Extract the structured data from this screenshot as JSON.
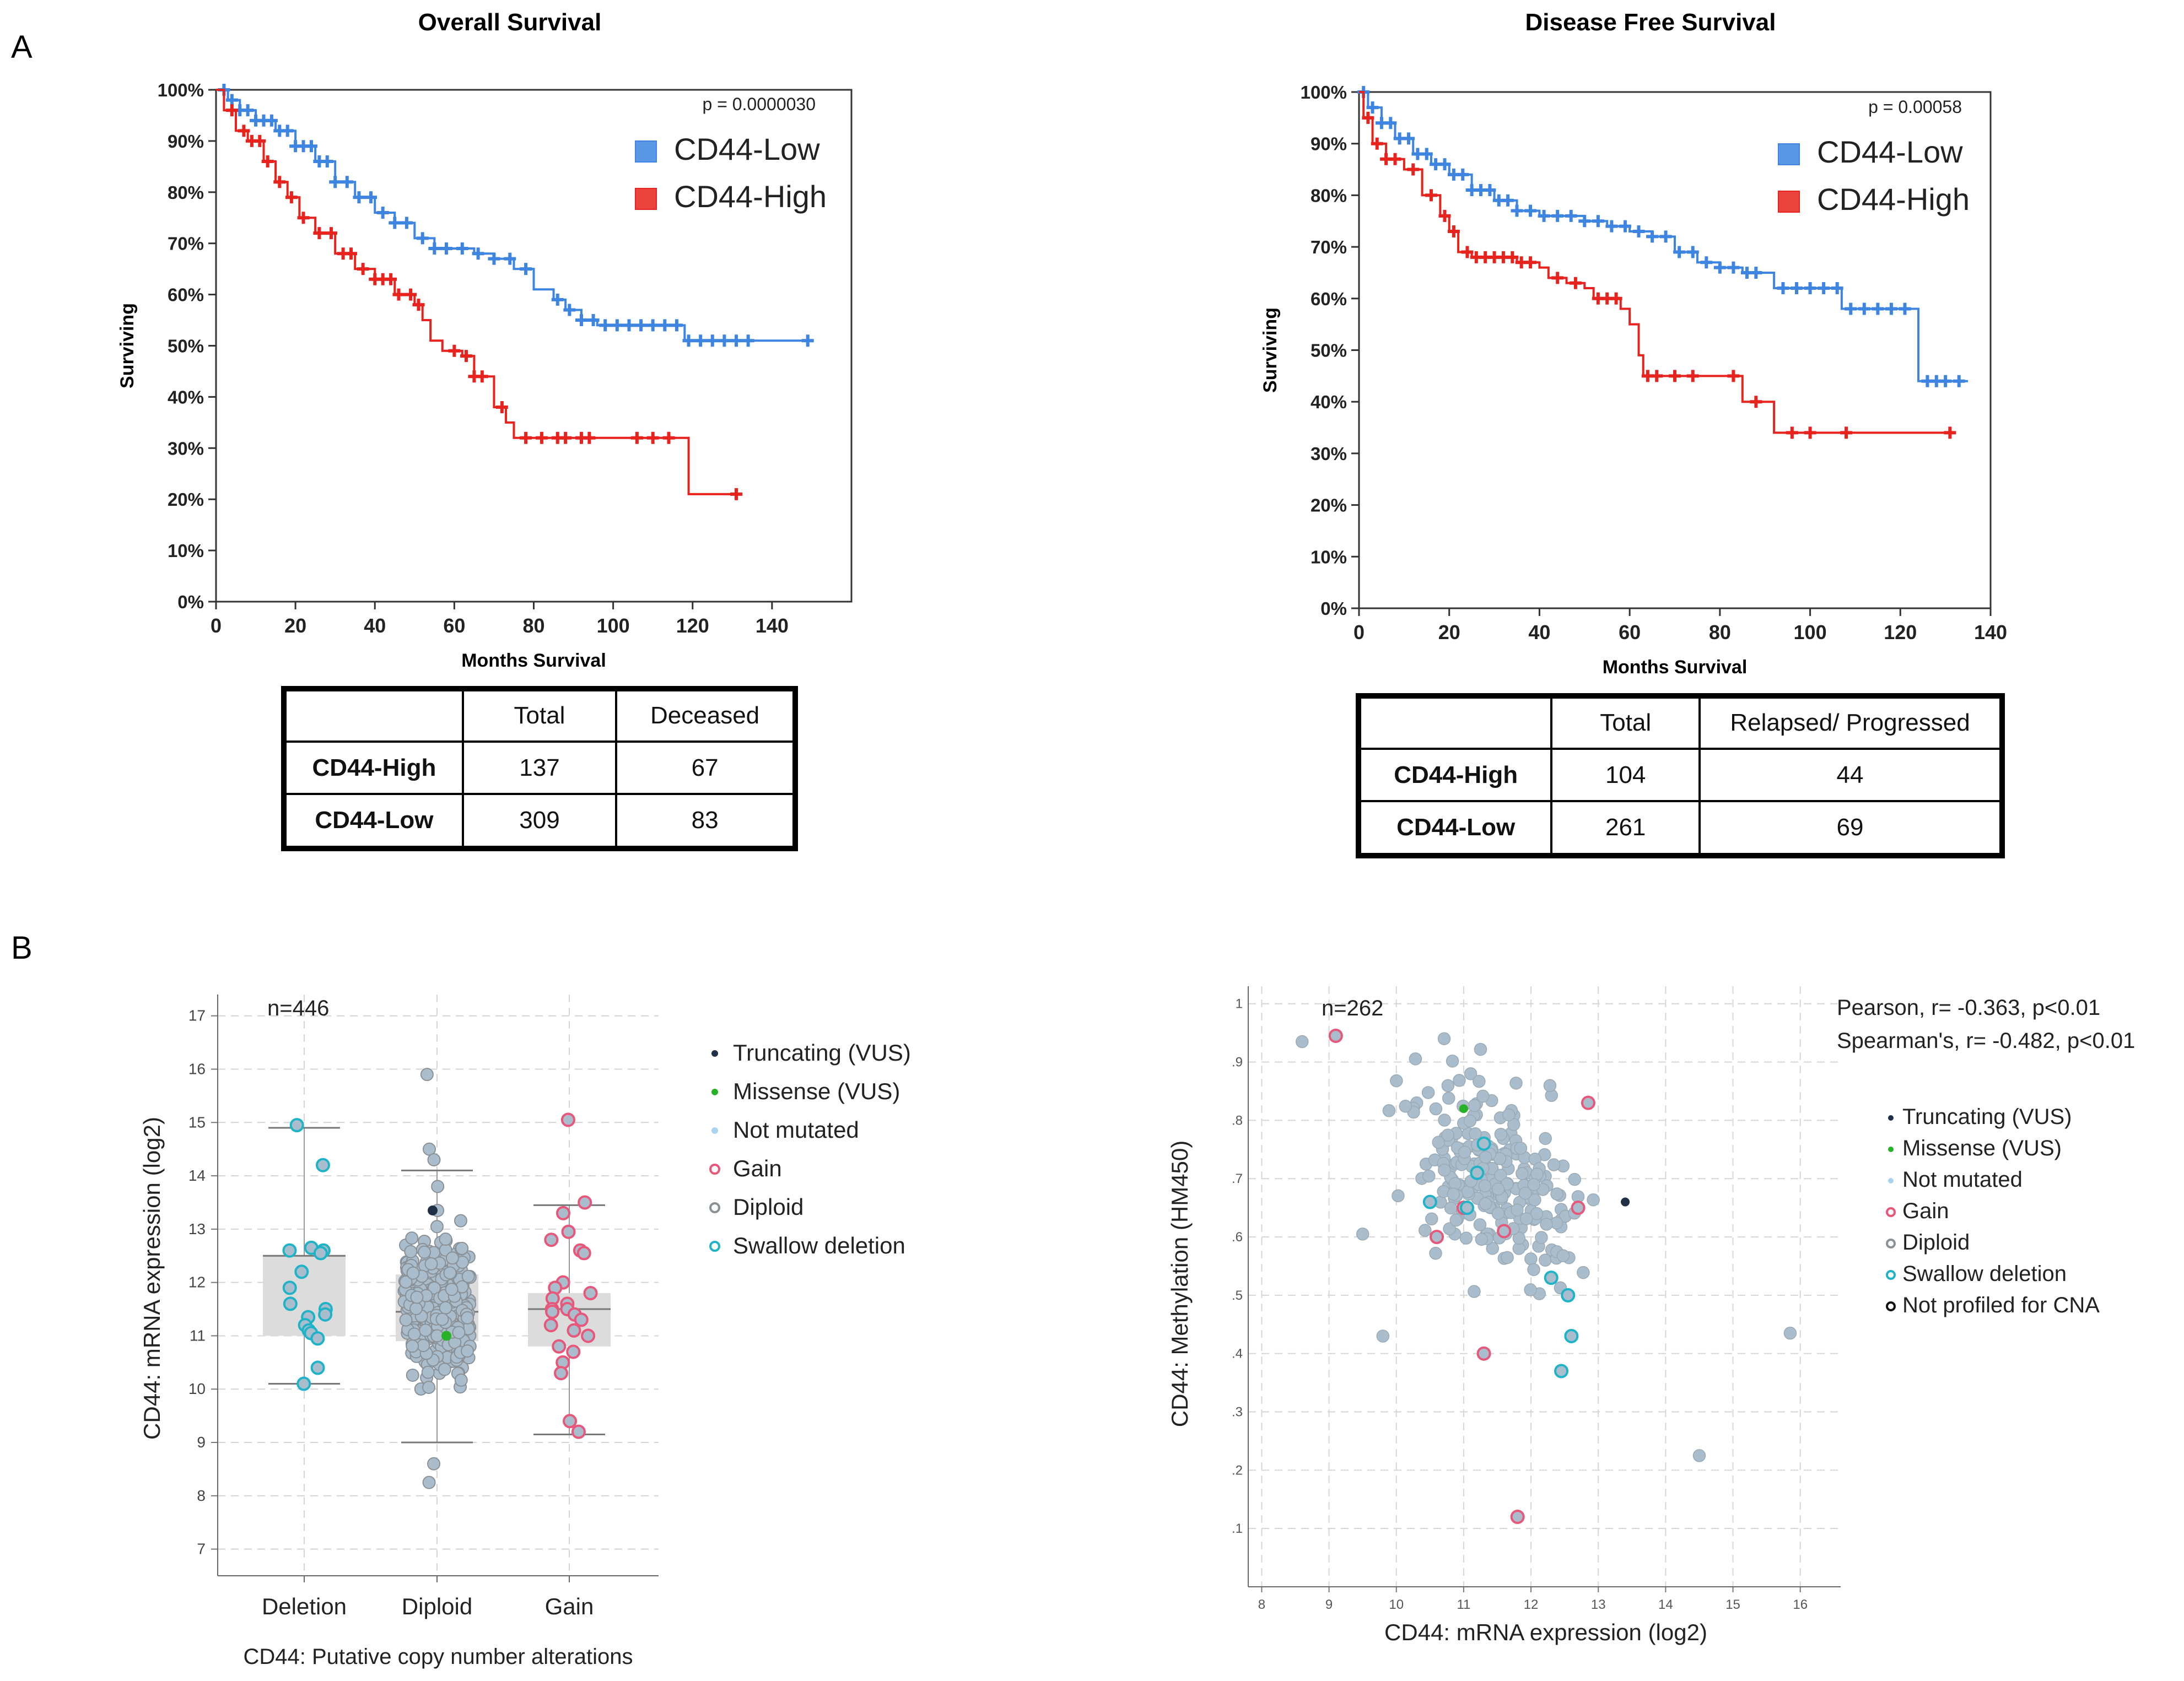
{
  "panels": {
    "a": "A",
    "b": "B"
  },
  "chart_data": [
    {
      "id": "os",
      "type": "line",
      "subtype": "kaplan-meier",
      "title": "Overall Survival",
      "xlabel": "Months Survival",
      "ylabel": "Surviving",
      "xlim": [
        0,
        160
      ],
      "ylim": [
        0,
        100
      ],
      "xticks": [
        0,
        20,
        40,
        60,
        80,
        100,
        120,
        140
      ],
      "yticks": [
        0,
        10,
        20,
        30,
        40,
        50,
        60,
        70,
        80,
        90,
        100
      ],
      "yticklabels": [
        "0%",
        "10%",
        "20%",
        "30%",
        "40%",
        "50%",
        "60%",
        "70%",
        "80%",
        "90%",
        "100%"
      ],
      "pvalue": "p = 0.0000030",
      "legend": [
        "CD44-Low",
        "CD44-High"
      ],
      "series": [
        {
          "name": "CD44-Low",
          "color": "#3d85e0",
          "points": [
            [
              0,
              100
            ],
            [
              3,
              98
            ],
            [
              6,
              96
            ],
            [
              10,
              94
            ],
            [
              15,
              92
            ],
            [
              20,
              89
            ],
            [
              25,
              86
            ],
            [
              30,
              82
            ],
            [
              35,
              79
            ],
            [
              40,
              76
            ],
            [
              45,
              74
            ],
            [
              50,
              71
            ],
            [
              55,
              69
            ],
            [
              60,
              69
            ],
            [
              65,
              68
            ],
            [
              70,
              67
            ],
            [
              75,
              65
            ],
            [
              80,
              61
            ],
            [
              85,
              59
            ],
            [
              88,
              57
            ],
            [
              92,
              55
            ],
            [
              96,
              54
            ],
            [
              105,
              54
            ],
            [
              117,
              54
            ],
            [
              118,
              51
            ],
            [
              150,
              51
            ]
          ],
          "censored": [
            2,
            4,
            6,
            8,
            10,
            12,
            14,
            16,
            18,
            20,
            22,
            24,
            26,
            28,
            30,
            33,
            36,
            39,
            42,
            45,
            48,
            52,
            55,
            58,
            62,
            66,
            70,
            74,
            78,
            86,
            89,
            92,
            95,
            98,
            101,
            104,
            107,
            110,
            113,
            116,
            119,
            122,
            125,
            128,
            131,
            134,
            149
          ]
        },
        {
          "name": "CD44-High",
          "color": "#e8221c",
          "points": [
            [
              0,
              100
            ],
            [
              2,
              96
            ],
            [
              5,
              92
            ],
            [
              8,
              90
            ],
            [
              12,
              86
            ],
            [
              15,
              82
            ],
            [
              18,
              79
            ],
            [
              21,
              75
            ],
            [
              25,
              72
            ],
            [
              30,
              68
            ],
            [
              35,
              65
            ],
            [
              40,
              63
            ],
            [
              45,
              60
            ],
            [
              50,
              58
            ],
            [
              52,
              55
            ],
            [
              54,
              51
            ],
            [
              57,
              49
            ],
            [
              62,
              48
            ],
            [
              65,
              44
            ],
            [
              70,
              38
            ],
            [
              73,
              35
            ],
            [
              75,
              32
            ],
            [
              80,
              32
            ],
            [
              118,
              32
            ],
            [
              119,
              21
            ],
            [
              131,
              21
            ]
          ],
          "censored": [
            4,
            7,
            9,
            11,
            13,
            16,
            19,
            22,
            26,
            29,
            32,
            34,
            37,
            40,
            42,
            44,
            46,
            49,
            51,
            60,
            63,
            65,
            67,
            72,
            78,
            82,
            86,
            88,
            92,
            94,
            106,
            110,
            114,
            131
          ]
        }
      ],
      "table": {
        "headers": [
          "",
          "Total",
          "Deceased"
        ],
        "rows": [
          {
            "label": "CD44-High",
            "total": "137",
            "event": "67"
          },
          {
            "label": "CD44-Low",
            "total": "309",
            "event": "83"
          }
        ]
      }
    },
    {
      "id": "dfs",
      "type": "line",
      "subtype": "kaplan-meier",
      "title": "Disease Free Survival",
      "xlabel": "Months Survival",
      "ylabel": "Surviving",
      "xlim": [
        0,
        140
      ],
      "ylim": [
        0,
        100
      ],
      "xticks": [
        0,
        20,
        40,
        60,
        80,
        100,
        120,
        140
      ],
      "yticks": [
        0,
        10,
        20,
        30,
        40,
        50,
        60,
        70,
        80,
        90,
        100
      ],
      "yticklabels": [
        "0%",
        "10%",
        "20%",
        "30%",
        "40%",
        "50%",
        "60%",
        "70%",
        "80%",
        "90%",
        "100%"
      ],
      "pvalue": "p = 0.00058",
      "legend": [
        "CD44-Low",
        "CD44-High"
      ],
      "series": [
        {
          "name": "CD44-Low",
          "color": "#3d85e0",
          "points": [
            [
              0,
              100
            ],
            [
              2,
              97
            ],
            [
              5,
              94
            ],
            [
              8,
              91
            ],
            [
              12,
              88
            ],
            [
              16,
              86
            ],
            [
              20,
              84
            ],
            [
              25,
              81
            ],
            [
              30,
              79
            ],
            [
              35,
              77
            ],
            [
              40,
              76
            ],
            [
              45,
              76
            ],
            [
              50,
              75
            ],
            [
              55,
              74
            ],
            [
              60,
              73
            ],
            [
              65,
              72
            ],
            [
              70,
              69
            ],
            [
              75,
              67
            ],
            [
              80,
              66
            ],
            [
              85,
              65
            ],
            [
              90,
              65
            ],
            [
              92,
              62
            ],
            [
              100,
              62
            ],
            [
              106,
              62
            ],
            [
              107,
              58
            ],
            [
              123,
              58
            ],
            [
              124,
              44
            ],
            [
              135,
              44
            ]
          ],
          "censored": [
            1,
            3,
            5,
            7,
            9,
            11,
            13,
            15,
            17,
            19,
            21,
            23,
            25,
            27,
            29,
            31,
            33,
            35,
            38,
            41,
            44,
            47,
            50,
            53,
            56,
            59,
            62,
            65,
            68,
            71,
            74,
            77,
            80,
            83,
            86,
            88,
            94,
            97,
            100,
            103,
            106,
            109,
            112,
            115,
            118,
            121,
            126,
            128,
            130,
            133
          ]
        },
        {
          "name": "CD44-High",
          "color": "#e8221c",
          "points": [
            [
              0,
              100
            ],
            [
              1,
              95
            ],
            [
              3,
              90
            ],
            [
              6,
              87
            ],
            [
              10,
              85
            ],
            [
              14,
              80
            ],
            [
              18,
              76
            ],
            [
              20,
              73
            ],
            [
              22,
              69
            ],
            [
              25,
              68
            ],
            [
              35,
              67
            ],
            [
              40,
              66
            ],
            [
              42,
              64
            ],
            [
              46,
              63
            ],
            [
              50,
              62
            ],
            [
              52,
              60
            ],
            [
              58,
              58
            ],
            [
              60,
              55
            ],
            [
              62,
              49
            ],
            [
              63,
              45
            ],
            [
              75,
              45
            ],
            [
              84,
              45
            ],
            [
              85,
              40
            ],
            [
              91,
              40
            ],
            [
              92,
              34
            ],
            [
              131,
              34
            ]
          ],
          "censored": [
            2,
            4,
            6,
            8,
            12,
            16,
            19,
            21,
            24,
            26,
            28,
            30,
            32,
            34,
            36,
            38,
            44,
            48,
            53,
            55,
            57,
            64,
            66,
            70,
            74,
            83,
            88,
            96,
            100,
            108,
            131
          ]
        }
      ],
      "table": {
        "headers": [
          "",
          "Total",
          "Relapsed/ Progressed"
        ],
        "rows": [
          {
            "label": "CD44-High",
            "total": "104",
            "event": "44"
          },
          {
            "label": "CD44-Low",
            "total": "261",
            "event": "69"
          }
        ]
      }
    },
    {
      "id": "cna",
      "type": "scatter",
      "subtype": "box-strip",
      "xlabel": "CD44: Putative copy number alterations",
      "ylabel": "CD44: mRNA expression (log2)",
      "ylim": [
        6.5,
        17.4
      ],
      "yticks": [
        7,
        8,
        9,
        10,
        11,
        12,
        13,
        14,
        15,
        16,
        17
      ],
      "categories": [
        "Deletion",
        "Diploid",
        "Gain"
      ],
      "n_label": "n=446",
      "boxes": [
        {
          "category": "Deletion",
          "q1": 11.0,
          "median": 12.5,
          "q3": 12.5,
          "whisker_low": 10.1,
          "whisker_high": 14.9
        },
        {
          "category": "Diploid",
          "q1": 10.9,
          "median": 11.45,
          "q3": 12.15,
          "whisker_low": 9.0,
          "whisker_high": 14.1
        },
        {
          "category": "Gain",
          "q1": 10.8,
          "median": 11.5,
          "q3": 11.8,
          "whisker_low": 9.15,
          "whisker_high": 13.45
        }
      ],
      "points": {
        "Deletion": [
          14.95,
          14.2,
          12.65,
          12.6,
          12.6,
          12.55,
          12.2,
          11.9,
          11.6,
          11.5,
          11.4,
          11.35,
          11.2,
          11.1,
          11.05,
          10.95,
          10.4,
          10.1
        ],
        "Gain": [
          15.05,
          13.5,
          13.3,
          12.95,
          12.8,
          12.6,
          12.55,
          12.0,
          11.9,
          11.8,
          11.7,
          11.6,
          11.5,
          11.5,
          11.45,
          11.4,
          11.3,
          11.2,
          11.1,
          11.0,
          10.8,
          10.7,
          10.5,
          10.3,
          9.4,
          9.2
        ],
        "Diploid_sample": [
          15.9,
          14.5,
          14.3,
          13.8,
          13.35,
          11.0,
          8.6,
          8.25
        ]
      },
      "legend": [
        "Truncating (VUS)",
        "Missense (VUS)",
        "Not mutated",
        "Gain",
        "Diploid",
        "Swallow deletion"
      ],
      "colors": {
        "truncating": "#1f2f45",
        "missense": "#27b227",
        "not_mutated": "#a9d3f0",
        "gain": "#e8567a",
        "diploid": "#8a9196",
        "deletion": "#1fb3c8",
        "point_fill": "#aabdcc"
      }
    },
    {
      "id": "methyl",
      "type": "scatter",
      "xlabel": "CD44: mRNA expression (log2)",
      "ylabel": "CD44: Methylation (HM450)",
      "xlim": [
        7.8,
        16.6
      ],
      "ylim": [
        0.0,
        1.03
      ],
      "xticks": [
        8,
        9,
        10,
        11,
        12,
        13,
        14,
        15,
        16
      ],
      "yticks": [
        0.1,
        0.2,
        0.3,
        0.4,
        0.5,
        0.6,
        0.7,
        0.8,
        0.9,
        1
      ],
      "yticklabels": [
        ".1",
        ".2",
        ".3",
        ".4",
        ".5",
        ".6",
        ".7",
        ".8",
        ".9",
        "1"
      ],
      "n_label": "n=262",
      "stats": [
        "Pearson, r= -0.363, p<0.01",
        "Spearman's, r= -0.482, p<0.01"
      ],
      "legend": [
        "Truncating (VUS)",
        "Missense (VUS)",
        "Not mutated",
        "Gain",
        "Diploid",
        "Swallow deletion",
        "Not profiled for CNA"
      ],
      "points_special": {
        "gain": [
          [
            9.1,
            0.945
          ],
          [
            12.85,
            0.83
          ],
          [
            11.0,
            0.65
          ],
          [
            10.6,
            0.6
          ],
          [
            11.6,
            0.61
          ],
          [
            12.7,
            0.65
          ],
          [
            11.3,
            0.4
          ],
          [
            11.8,
            0.12
          ]
        ],
        "deletion": [
          [
            10.5,
            0.66
          ],
          [
            11.05,
            0.65
          ],
          [
            11.2,
            0.71
          ],
          [
            11.3,
            0.76
          ],
          [
            12.3,
            0.53
          ],
          [
            12.55,
            0.5
          ],
          [
            12.6,
            0.43
          ],
          [
            12.45,
            0.37
          ]
        ],
        "missense": [
          [
            11.0,
            0.82
          ]
        ],
        "truncating": [
          [
            13.4,
            0.66
          ]
        ]
      }
    }
  ]
}
